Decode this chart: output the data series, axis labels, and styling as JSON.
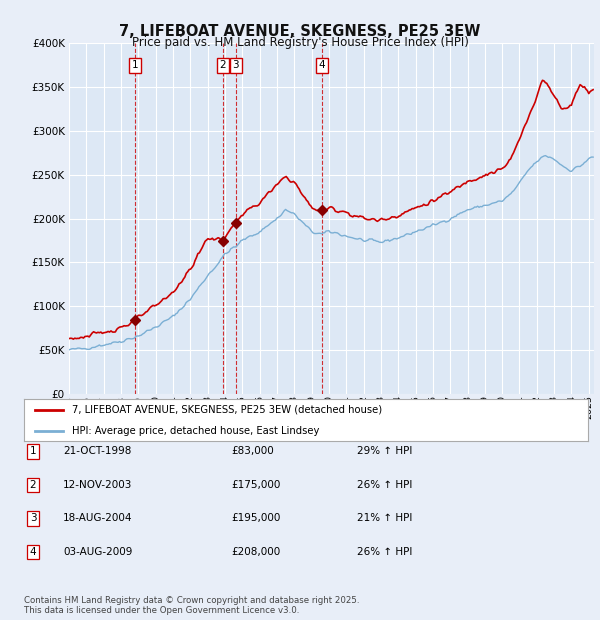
{
  "title": "7, LIFEBOAT AVENUE, SKEGNESS, PE25 3EW",
  "subtitle": "Price paid vs. HM Land Registry's House Price Index (HPI)",
  "background_color": "#e8eef8",
  "plot_bg_color": "#dde8f5",
  "grid_color": "#ffffff",
  "line1_color": "#cc0000",
  "line2_color": "#7bafd4",
  "marker_color": "#880000",
  "transactions": [
    {
      "num": 1,
      "date": "21-OCT-1998",
      "price": 83000,
      "hpi_pct": "29%",
      "x_year": 1998.8
    },
    {
      "num": 2,
      "date": "12-NOV-2003",
      "price": 175000,
      "hpi_pct": "26%",
      "x_year": 2003.87
    },
    {
      "num": 3,
      "date": "18-AUG-2004",
      "price": 195000,
      "hpi_pct": "21%",
      "x_year": 2004.63
    },
    {
      "num": 4,
      "date": "03-AUG-2009",
      "price": 208000,
      "hpi_pct": "26%",
      "x_year": 2009.59
    }
  ],
  "legend_label1": "7, LIFEBOAT AVENUE, SKEGNESS, PE25 3EW (detached house)",
  "legend_label2": "HPI: Average price, detached house, East Lindsey",
  "footer": "Contains HM Land Registry data © Crown copyright and database right 2025.\nThis data is licensed under the Open Government Licence v3.0.",
  "ylim": [
    0,
    400000
  ],
  "xlim": [
    1995,
    2025.3
  ],
  "yticks": [
    0,
    50000,
    100000,
    150000,
    200000,
    250000,
    300000,
    350000,
    400000
  ]
}
